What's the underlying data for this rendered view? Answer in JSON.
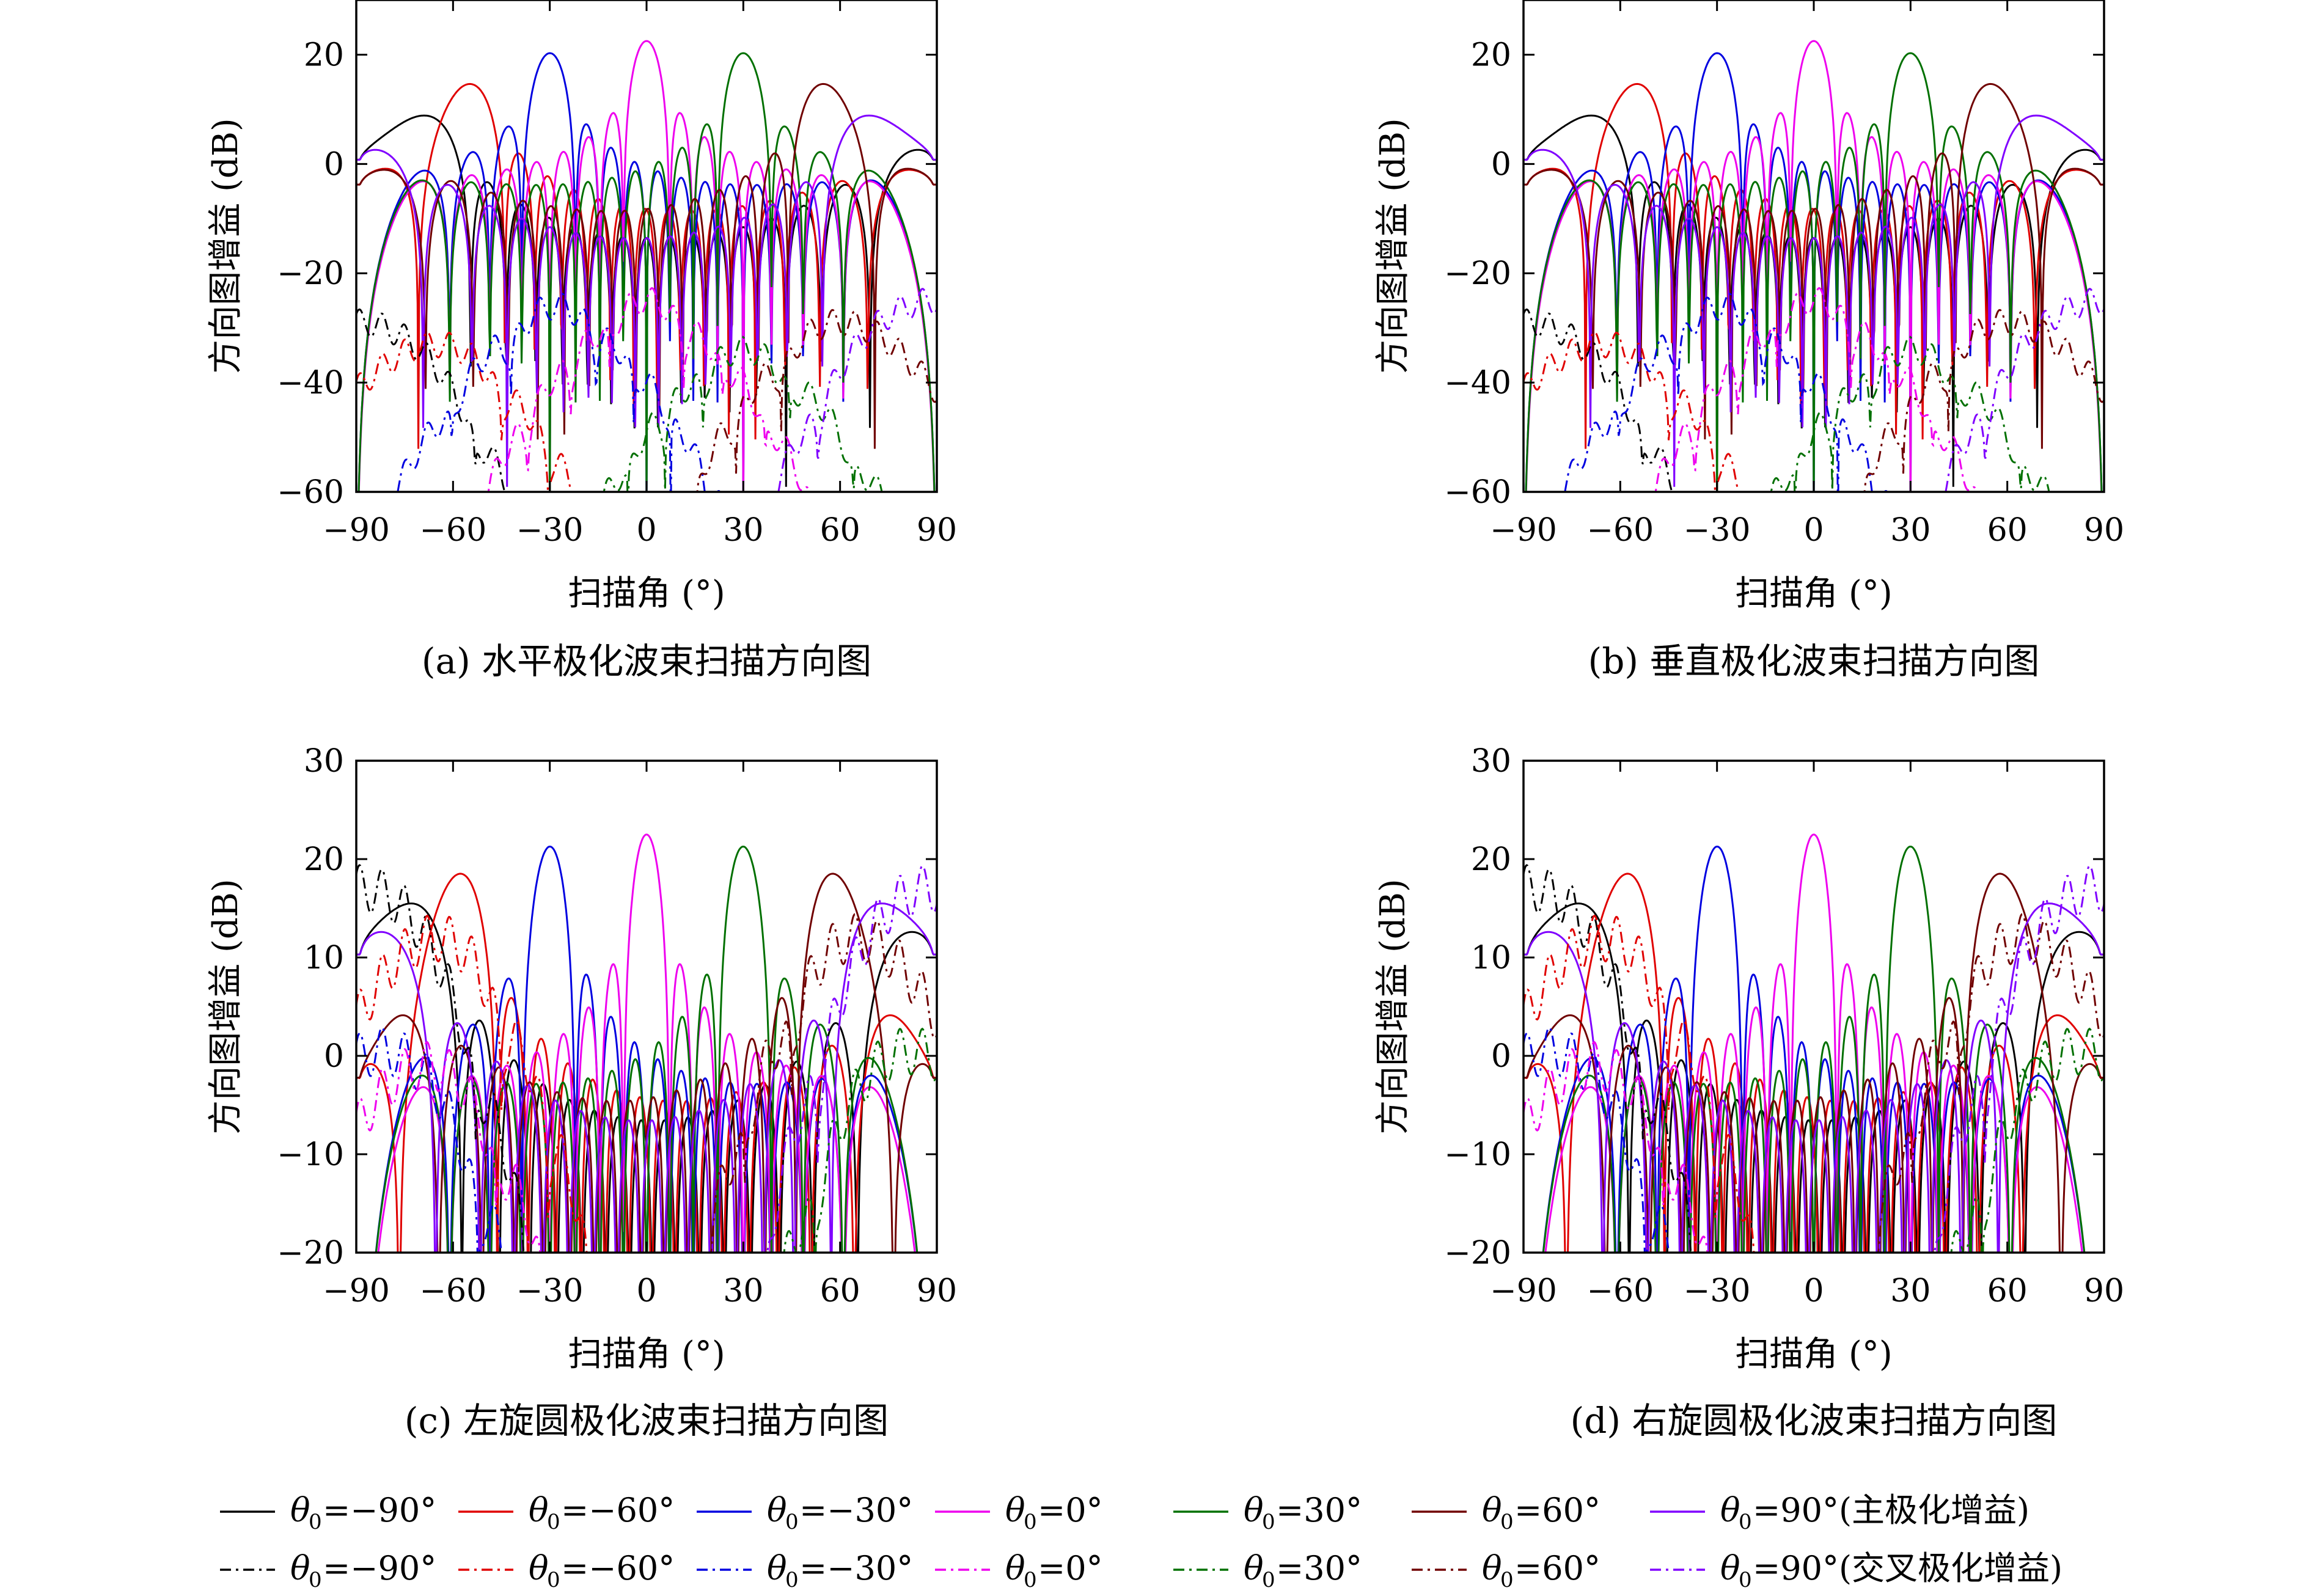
{
  "colors": {
    "-90": "#000000",
    "-60": "#e00000",
    "-30": "#0000e0",
    "0": "#ee00ee",
    "30": "#007000",
    "60": "#700000",
    "90": "#8000ff"
  },
  "legend": {
    "row1": [
      {
        "color_key": "-90",
        "theta_sym": "θ",
        "theta_sub": "0",
        "text": "=−90°"
      },
      {
        "color_key": "-60",
        "theta_sym": "θ",
        "theta_sub": "0",
        "text": "=−60°"
      },
      {
        "color_key": "-30",
        "theta_sym": "θ",
        "theta_sub": "0",
        "text": "=−30°"
      },
      {
        "color_key": "0",
        "theta_sym": "θ",
        "theta_sub": "0",
        "text": "=0°"
      },
      {
        "color_key": "30",
        "theta_sym": "θ",
        "theta_sub": "0",
        "text": "=30°"
      },
      {
        "color_key": "60",
        "theta_sym": "θ",
        "theta_sub": "0",
        "text": "=60°"
      },
      {
        "color_key": "90",
        "theta_sym": "θ",
        "theta_sub": "0",
        "text": "=90°(主极化增益)"
      }
    ],
    "row2": [
      {
        "color_key": "-90",
        "theta_sym": "θ",
        "theta_sub": "0",
        "text": "=−90°"
      },
      {
        "color_key": "-60",
        "theta_sym": "θ",
        "theta_sub": "0",
        "text": "=−60°"
      },
      {
        "color_key": "-30",
        "theta_sym": "θ",
        "theta_sub": "0",
        "text": "=−30°"
      },
      {
        "color_key": "0",
        "theta_sym": "θ",
        "theta_sub": "0",
        "text": "=0°"
      },
      {
        "color_key": "30",
        "theta_sym": "θ",
        "theta_sub": "0",
        "text": "=30°"
      },
      {
        "color_key": "60",
        "theta_sym": "θ",
        "theta_sub": "0",
        "text": "=60°"
      },
      {
        "color_key": "90",
        "theta_sym": "θ",
        "theta_sub": "0",
        "text": "=90°(交叉极化增益)"
      }
    ]
  },
  "chart_data": [
    {
      "type": "line",
      "caption": "(a) 水平极化波束扫描方向图",
      "xlabel": "扫描角 (°)",
      "ylabel": "方向图增益 (dB)",
      "xlim": [
        -90,
        90
      ],
      "ylim": [
        -60,
        30
      ],
      "xticks": [
        "−90",
        "−60",
        "−30",
        "0",
        "30",
        "60",
        "90"
      ],
      "yticks": [
        "−60",
        "−40",
        "−20",
        "0",
        "20"
      ],
      "grid": false,
      "series": [
        {
          "steer": -90,
          "pol": "co",
          "peak": 10.5,
          "peak_at": -70
        },
        {
          "steer": -60,
          "pol": "co",
          "peak": 15.5,
          "peak_at": -55
        },
        {
          "steer": -30,
          "pol": "co",
          "peak": 20.5,
          "peak_at": -30
        },
        {
          "steer": 0,
          "pol": "co",
          "peak": 22.5,
          "peak_at": 0
        },
        {
          "steer": 30,
          "pol": "co",
          "peak": 20.5,
          "peak_at": 30
        },
        {
          "steer": 60,
          "pol": "co",
          "peak": 15.5,
          "peak_at": 55
        },
        {
          "steer": 90,
          "pol": "co",
          "peak": 10.5,
          "peak_at": 70
        },
        {
          "steer": -90,
          "pol": "cross",
          "peak": -29,
          "peak_at": -90
        },
        {
          "steer": -60,
          "pol": "cross",
          "peak": -33,
          "peak_at": -65
        },
        {
          "steer": -30,
          "pol": "cross",
          "peak": -26,
          "peak_at": -28
        },
        {
          "steer": 0,
          "pol": "cross",
          "peak": -25,
          "peak_at": 0
        },
        {
          "steer": 30,
          "pol": "cross",
          "peak": -34,
          "peak_at": 30
        },
        {
          "steer": 60,
          "pol": "cross",
          "peak": -29,
          "peak_at": 60
        },
        {
          "steer": 90,
          "pol": "cross",
          "peak": -25,
          "peak_at": 90
        }
      ]
    },
    {
      "type": "line",
      "caption": "(b) 垂直极化波束扫描方向图",
      "xlabel": "扫描角 (°)",
      "ylabel": "方向图增益 (dB)",
      "xlim": [
        -90,
        90
      ],
      "ylim": [
        -60,
        30
      ],
      "xticks": [
        "−90",
        "−60",
        "−30",
        "0",
        "30",
        "60",
        "90"
      ],
      "yticks": [
        "−60",
        "−40",
        "−20",
        "0",
        "20"
      ],
      "grid": false,
      "series": [
        {
          "steer": -90,
          "pol": "co",
          "peak": 10.5,
          "peak_at": -70
        },
        {
          "steer": -60,
          "pol": "co",
          "peak": 15.5,
          "peak_at": -55
        },
        {
          "steer": -30,
          "pol": "co",
          "peak": 20.5,
          "peak_at": -30
        },
        {
          "steer": 0,
          "pol": "co",
          "peak": 22.5,
          "peak_at": 0
        },
        {
          "steer": 30,
          "pol": "co",
          "peak": 20.5,
          "peak_at": 30
        },
        {
          "steer": 60,
          "pol": "co",
          "peak": 15.5,
          "peak_at": 55
        },
        {
          "steer": 90,
          "pol": "co",
          "peak": 10.5,
          "peak_at": 70
        },
        {
          "steer": -90,
          "pol": "cross",
          "peak": -29,
          "peak_at": -90
        },
        {
          "steer": -60,
          "pol": "cross",
          "peak": -33,
          "peak_at": -65
        },
        {
          "steer": -30,
          "pol": "cross",
          "peak": -26,
          "peak_at": -28
        },
        {
          "steer": 0,
          "pol": "cross",
          "peak": -25,
          "peak_at": 0
        },
        {
          "steer": 30,
          "pol": "cross",
          "peak": -34,
          "peak_at": 30
        },
        {
          "steer": 60,
          "pol": "cross",
          "peak": -29,
          "peak_at": 60
        },
        {
          "steer": 90,
          "pol": "cross",
          "peak": -25,
          "peak_at": 90
        }
      ]
    },
    {
      "type": "line",
      "caption": "(c) 左旋圆极化波束扫描方向图",
      "xlabel": "扫描角 (°)",
      "ylabel": "方向图增益 (dB)",
      "xlim": [
        -90,
        90
      ],
      "ylim": [
        -20,
        30
      ],
      "xticks": [
        "−90",
        "−60",
        "−30",
        "0",
        "30",
        "60",
        "90"
      ],
      "yticks": [
        "−20",
        "−10",
        "0",
        "10",
        "20",
        "30"
      ],
      "grid": false,
      "series": [
        {
          "steer": -90,
          "pol": "co",
          "peak": 17.5,
          "peak_at": -75
        },
        {
          "steer": -60,
          "pol": "co",
          "peak": 19.5,
          "peak_at": -58
        },
        {
          "steer": -30,
          "pol": "co",
          "peak": 21.5,
          "peak_at": -30
        },
        {
          "steer": 0,
          "pol": "co",
          "peak": 22.5,
          "peak_at": 0
        },
        {
          "steer": 30,
          "pol": "co",
          "peak": 21.5,
          "peak_at": 30
        },
        {
          "steer": 60,
          "pol": "co",
          "peak": 19.5,
          "peak_at": 58
        },
        {
          "steer": 90,
          "pol": "co",
          "peak": 17.5,
          "peak_at": 75
        },
        {
          "steer": -90,
          "pol": "cross",
          "peak": 17,
          "peak_at": -88
        },
        {
          "steer": -60,
          "pol": "cross",
          "peak": 12,
          "peak_at": -65
        },
        {
          "steer": -30,
          "pol": "cross",
          "peak": 0.5,
          "peak_at": -82
        },
        {
          "steer": 0,
          "pol": "cross",
          "peak": -1,
          "peak_at": -68
        },
        {
          "steer": 30,
          "pol": "cross",
          "peak": 0.5,
          "peak_at": 82
        },
        {
          "steer": 60,
          "pol": "cross",
          "peak": 12,
          "peak_at": 65
        },
        {
          "steer": 90,
          "pol": "cross",
          "peak": 17,
          "peak_at": 88
        }
      ]
    },
    {
      "type": "line",
      "caption": "(d) 右旋圆极化波束扫描方向图",
      "xlabel": "扫描角 (°)",
      "ylabel": "方向图增益 (dB)",
      "xlim": [
        -90,
        90
      ],
      "ylim": [
        -20,
        30
      ],
      "xticks": [
        "−90",
        "−60",
        "−30",
        "0",
        "30",
        "60",
        "90"
      ],
      "yticks": [
        "−20",
        "−10",
        "0",
        "10",
        "20",
        "30"
      ],
      "grid": false,
      "series": [
        {
          "steer": -90,
          "pol": "co",
          "peak": 17.5,
          "peak_at": -75
        },
        {
          "steer": -60,
          "pol": "co",
          "peak": 19.5,
          "peak_at": -58
        },
        {
          "steer": -30,
          "pol": "co",
          "peak": 21.5,
          "peak_at": -30
        },
        {
          "steer": 0,
          "pol": "co",
          "peak": 22.5,
          "peak_at": 0
        },
        {
          "steer": 30,
          "pol": "co",
          "peak": 21.5,
          "peak_at": 30
        },
        {
          "steer": 60,
          "pol": "co",
          "peak": 19.5,
          "peak_at": 58
        },
        {
          "steer": 90,
          "pol": "co",
          "peak": 17.5,
          "peak_at": 75
        },
        {
          "steer": -90,
          "pol": "cross",
          "peak": 17,
          "peak_at": -88
        },
        {
          "steer": -60,
          "pol": "cross",
          "peak": 12,
          "peak_at": -65
        },
        {
          "steer": -30,
          "pol": "cross",
          "peak": 0.5,
          "peak_at": -82
        },
        {
          "steer": 0,
          "pol": "cross",
          "peak": -1,
          "peak_at": -68
        },
        {
          "steer": 30,
          "pol": "cross",
          "peak": 0.5,
          "peak_at": 82
        },
        {
          "steer": 60,
          "pol": "cross",
          "peak": 12,
          "peak_at": 65
        },
        {
          "steer": 90,
          "pol": "cross",
          "peak": 17,
          "peak_at": 88
        }
      ]
    }
  ]
}
